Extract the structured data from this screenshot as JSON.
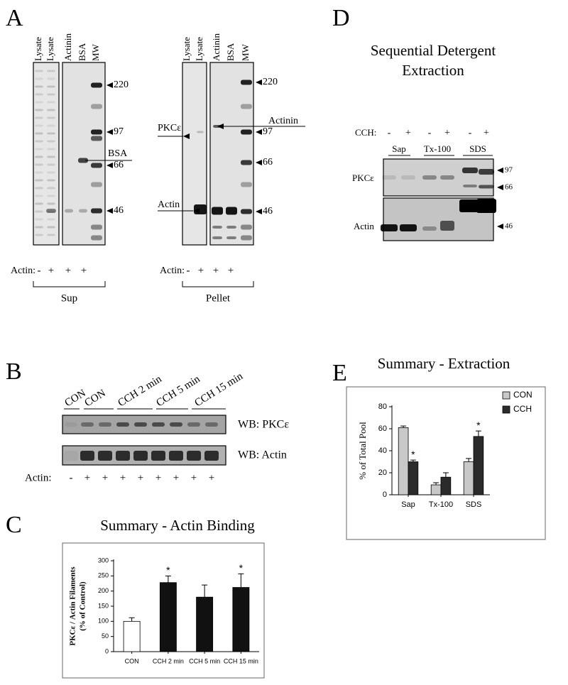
{
  "panels": {
    "A": {
      "label": "A",
      "sup": {
        "lanes": [
          "Lysate",
          "Lysate",
          "Actinin",
          "BSA",
          "MW"
        ],
        "markers": [
          220,
          97,
          66,
          46
        ],
        "annotations": [
          "BSA"
        ],
        "row_label": "Actin:",
        "signs": [
          "-",
          "+",
          "+",
          "+"
        ],
        "group": "Sup"
      },
      "pellet": {
        "lanes": [
          "Lysate",
          "Lysate",
          "Actinin",
          "BSA",
          "MW"
        ],
        "markers": [
          220,
          97,
          66,
          46
        ],
        "annotations": [
          "PKCε",
          "Actin",
          "Actinin"
        ],
        "row_label": "Actin:",
        "signs": [
          "-",
          "+",
          "+",
          "+"
        ],
        "group": "Pellet"
      }
    },
    "B": {
      "label": "B",
      "lanes": [
        "CON",
        "CON",
        "CCH 2 min",
        "CCH 5 min",
        "CCH 15 min"
      ],
      "blots": [
        "WB: PKCε",
        "WB: Actin"
      ],
      "row_label": "Actin:",
      "signs": [
        "-",
        "+",
        "+",
        "+",
        "+",
        "+",
        "+",
        "+",
        "+"
      ]
    },
    "C": {
      "label": "C"
    },
    "D": {
      "label": "D",
      "title": [
        "Sequential Detergent",
        "Extraction"
      ],
      "row_label": "CCH:",
      "signs": [
        "-",
        "+",
        "-",
        "+",
        "-",
        "+"
      ],
      "groups": [
        "Sap",
        "Tx-100",
        "SDS"
      ],
      "blots": [
        "PKCε",
        "Actin"
      ],
      "markers": [
        97,
        66,
        46
      ]
    },
    "E": {
      "label": "E"
    }
  },
  "chart_data": [
    {
      "type": "bar",
      "title": "Summary - Actin Binding",
      "ylabel": [
        "PKCε / Actin Filaments",
        "(% of Control)"
      ],
      "categories": [
        "CON",
        "CCH 2 min",
        "CCH 5 min",
        "CCH 15 min"
      ],
      "values": [
        100,
        228,
        180,
        212
      ],
      "errors": [
        12,
        22,
        40,
        45
      ],
      "markers": [
        null,
        "*",
        null,
        "*"
      ],
      "colors": [
        "#ffffff",
        "#111111",
        "#111111",
        "#111111"
      ],
      "ylim": [
        0,
        300
      ],
      "yticks": [
        0,
        50,
        100,
        150,
        200,
        250,
        300
      ]
    },
    {
      "type": "bar",
      "title": "Summary - Extraction",
      "ylabel": [
        "% of Total Pool"
      ],
      "categories": [
        "Sap",
        "Tx-100",
        "SDS"
      ],
      "series": [
        {
          "name": "CON",
          "color": "#c8c8c8",
          "values": [
            61,
            9,
            30
          ],
          "errors": [
            1.5,
            2,
            3
          ]
        },
        {
          "name": "CCH",
          "color": "#2b2b2b",
          "values": [
            30,
            16,
            53
          ],
          "errors": [
            1.5,
            4,
            5
          ],
          "markers": [
            "*",
            null,
            "*"
          ]
        }
      ],
      "ylim": [
        0,
        80
      ],
      "yticks": [
        0,
        20,
        40,
        60,
        80
      ],
      "legend": "top-right"
    }
  ]
}
